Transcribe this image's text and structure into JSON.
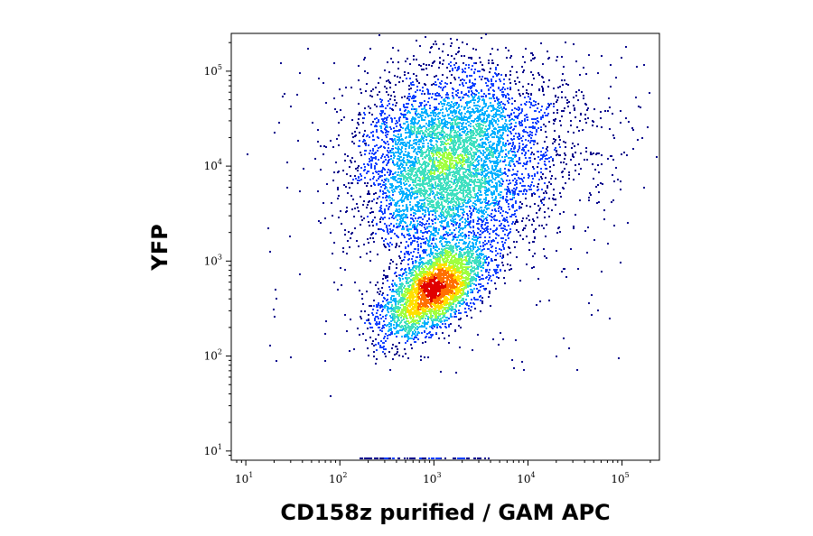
{
  "chart_data": {
    "type": "scatter",
    "title": "",
    "xlabel": "CD158z purified / GAM APC",
    "ylabel": "YFP",
    "x_scale": "log",
    "y_scale": "log",
    "xlim": [
      7,
      250000
    ],
    "ylim": [
      8,
      250000
    ],
    "grid": false,
    "legend": "none",
    "x_ticks": [
      {
        "base": "10",
        "exp": "1",
        "value": 10
      },
      {
        "base": "10",
        "exp": "2",
        "value": 100
      },
      {
        "base": "10",
        "exp": "3",
        "value": 1000
      },
      {
        "base": "10",
        "exp": "4",
        "value": 10000
      },
      {
        "base": "10",
        "exp": "5",
        "value": 100000
      }
    ],
    "y_ticks": [
      {
        "base": "10",
        "exp": "1",
        "value": 10
      },
      {
        "base": "10",
        "exp": "2",
        "value": 100
      },
      {
        "base": "10",
        "exp": "3",
        "value": 1000
      },
      {
        "base": "10",
        "exp": "4",
        "value": 10000
      },
      {
        "base": "10",
        "exp": "5",
        "value": 100000
      }
    ],
    "colors": [
      "#00008b",
      "#1040ff",
      "#00b0ff",
      "#40e0c0",
      "#a0ff40",
      "#ffe000",
      "#ff7000",
      "#e00000"
    ],
    "populations": [
      {
        "x_center": 1000,
        "y_center": 500,
        "x_spread_decades": 0.28,
        "y_spread_decades": 0.25,
        "correlation": 0.55,
        "count": 3200
      },
      {
        "x_center": 1300,
        "y_center": 9000,
        "x_spread_decades": 0.45,
        "y_spread_decades": 0.45,
        "correlation": 0.1,
        "count": 4200
      },
      {
        "x_center": 3000,
        "y_center": 20000,
        "x_spread_decades": 0.7,
        "y_spread_decades": 0.5,
        "correlation": 0.0,
        "count": 1500
      }
    ]
  }
}
